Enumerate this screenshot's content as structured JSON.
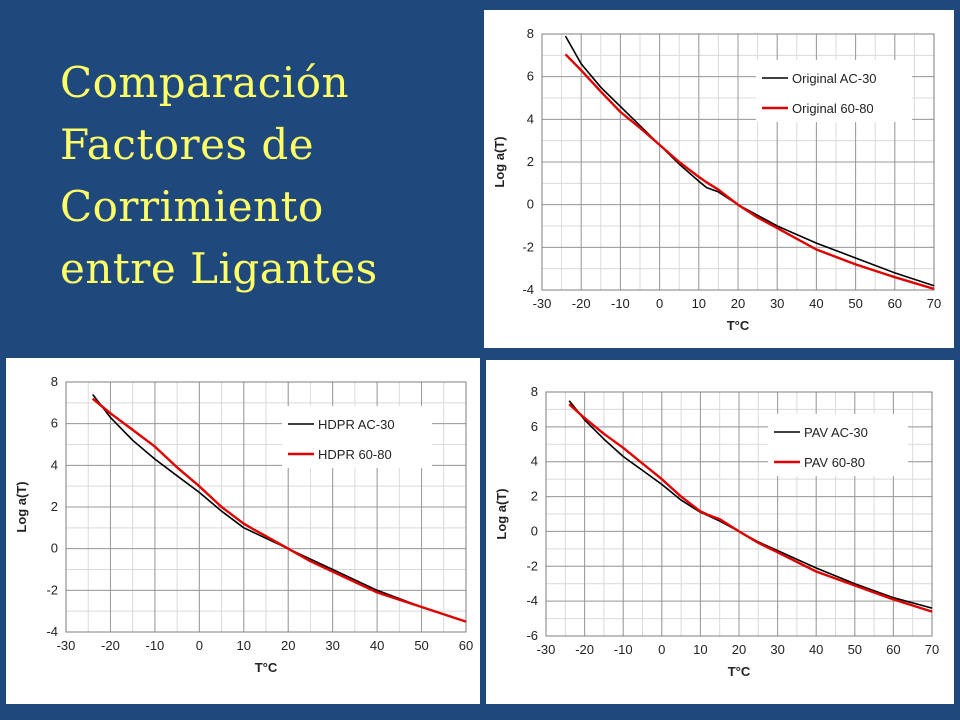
{
  "slide": {
    "title_lines": [
      "Comparación",
      "Factores de",
      "Corrimiento",
      "entre Ligantes"
    ],
    "background": "#1f497d",
    "title_color": "#ffff66"
  },
  "chart_data": [
    {
      "type": "line",
      "xlabel": "T°C",
      "ylabel": "Log a(T)",
      "xlim": [
        -30,
        70
      ],
      "ylim": [
        -4,
        8
      ],
      "xticks": [
        -30,
        -20,
        -10,
        0,
        10,
        20,
        30,
        40,
        50,
        60,
        70
      ],
      "yticks": [
        -4,
        -2,
        0,
        2,
        4,
        6,
        8
      ],
      "grid": true,
      "legend": "top-right",
      "series": [
        {
          "name": "Original AC-30",
          "color": "#000000",
          "x": [
            -24,
            -20,
            -15,
            -10,
            -5,
            0,
            5,
            10,
            12,
            15,
            20,
            25,
            30,
            40,
            50,
            60,
            70
          ],
          "y": [
            7.9,
            6.6,
            5.5,
            4.6,
            3.7,
            2.8,
            1.9,
            1.1,
            0.8,
            0.6,
            0.0,
            -0.5,
            -1.0,
            -1.8,
            -2.5,
            -3.2,
            -3.8
          ]
        },
        {
          "name": "Original 60-80",
          "color": "#e00000",
          "x": [
            -24,
            -20,
            -15,
            -10,
            -5,
            0,
            5,
            10,
            12,
            15,
            20,
            25,
            30,
            40,
            50,
            60,
            70
          ],
          "y": [
            7.05,
            6.3,
            5.3,
            4.35,
            3.6,
            2.8,
            2.0,
            1.3,
            1.05,
            0.7,
            0.0,
            -0.6,
            -1.1,
            -2.1,
            -2.8,
            -3.4,
            -3.95
          ]
        }
      ]
    },
    {
      "type": "line",
      "xlabel": "T°C",
      "ylabel": "Log a(T)",
      "xlim": [
        -30,
        60
      ],
      "ylim": [
        -4,
        8
      ],
      "xticks": [
        -30,
        -20,
        -10,
        0,
        10,
        20,
        30,
        40,
        50,
        60
      ],
      "yticks": [
        -4,
        -2,
        0,
        2,
        4,
        6,
        8
      ],
      "grid": true,
      "legend": "top-right",
      "series": [
        {
          "name": "HDPR AC-30",
          "color": "#000000",
          "x": [
            -24,
            -20,
            -15,
            -10,
            -5,
            0,
            5,
            10,
            12,
            15,
            20,
            25,
            30,
            40,
            50,
            60
          ],
          "y": [
            7.4,
            6.3,
            5.2,
            4.3,
            3.5,
            2.7,
            1.8,
            1.0,
            0.8,
            0.5,
            0.0,
            -0.5,
            -1.0,
            -2.0,
            -2.8,
            -3.5
          ]
        },
        {
          "name": "HDPR 60-80",
          "color": "#e00000",
          "x": [
            -24,
            -20,
            -15,
            -10,
            -5,
            0,
            5,
            10,
            12,
            15,
            20,
            25,
            30,
            40,
            50,
            60
          ],
          "y": [
            7.2,
            6.5,
            5.7,
            4.9,
            3.9,
            3.0,
            2.0,
            1.2,
            0.95,
            0.6,
            0.0,
            -0.6,
            -1.1,
            -2.1,
            -2.8,
            -3.5
          ]
        }
      ]
    },
    {
      "type": "line",
      "xlabel": "T°C",
      "ylabel": "Log a(T)",
      "xlim": [
        -30,
        70
      ],
      "ylim": [
        -6,
        8
      ],
      "xticks": [
        -30,
        -20,
        -10,
        0,
        10,
        20,
        30,
        40,
        50,
        60,
        70
      ],
      "yticks": [
        -6,
        -4,
        -2,
        0,
        2,
        4,
        6,
        8
      ],
      "grid": true,
      "legend": "top-right",
      "series": [
        {
          "name": "PAV AC-30",
          "color": "#000000",
          "x": [
            -24,
            -20,
            -15,
            -10,
            -5,
            0,
            5,
            10,
            12,
            15,
            20,
            25,
            30,
            40,
            50,
            60,
            70
          ],
          "y": [
            7.5,
            6.4,
            5.3,
            4.3,
            3.5,
            2.7,
            1.8,
            1.1,
            0.9,
            0.6,
            0.0,
            -0.6,
            -1.1,
            -2.1,
            -3.0,
            -3.8,
            -4.4
          ]
        },
        {
          "name": "PAV 60-80",
          "color": "#e00000",
          "x": [
            -24,
            -20,
            -15,
            -10,
            -5,
            0,
            5,
            10,
            12,
            15,
            20,
            25,
            30,
            40,
            50,
            60,
            70
          ],
          "y": [
            7.3,
            6.5,
            5.6,
            4.8,
            3.9,
            3.0,
            2.0,
            1.15,
            0.95,
            0.7,
            0.0,
            -0.65,
            -1.2,
            -2.3,
            -3.1,
            -3.9,
            -4.6
          ]
        }
      ]
    }
  ]
}
